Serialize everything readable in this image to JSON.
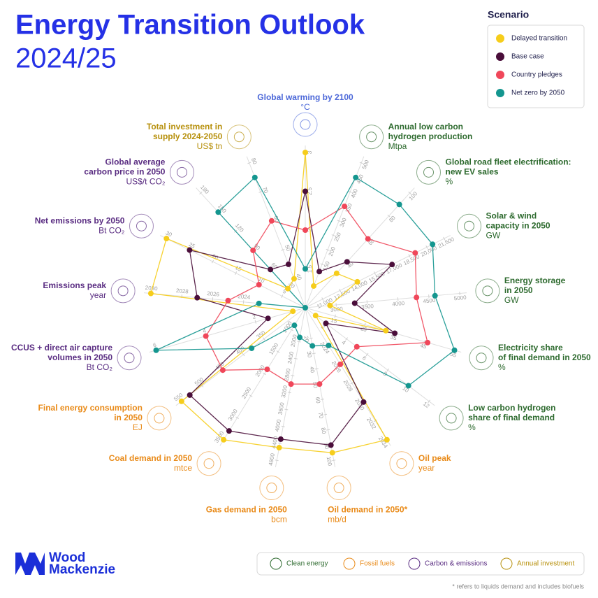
{
  "chart_data": {
    "type": "radar",
    "title": "Energy Transition Outlook",
    "subtitle": "2024/25",
    "legend_title": "Scenario",
    "series": [
      {
        "name": "Delayed transition",
        "color": "#f6cd1b",
        "values": [
          3,
          75,
          30,
          14000,
          2900,
          32,
          1,
          2034,
          95,
          4500,
          3500,
          550,
          0.5,
          2030,
          30,
          30,
          40
        ]
      },
      {
        "name": "Base case",
        "color": "#4a0e3a",
        "values": [
          2.5,
          125,
          40,
          17000,
          3300,
          35,
          2,
          2030,
          90,
          4300,
          3300,
          530,
          1.5,
          2027,
          25,
          60,
          45
        ]
      },
      {
        "name": "Country pledges",
        "color": "#f0475a",
        "values": [
          2,
          350,
          60,
          19000,
          4300,
          46,
          5,
          2026,
          50,
          3000,
          1900,
          450,
          4,
          2025,
          10,
          90,
          60
        ]
      },
      {
        "name": "Net zero by 2050",
        "color": "#14968f",
        "values": [
          1.5,
          450,
          90,
          20500,
          4600,
          55,
          10,
          2024,
          25,
          1900,
          900,
          380,
          6,
          2023,
          0,
          150,
          75
        ]
      }
    ],
    "axes": [
      {
        "label": [
          "Global warming by 2100"
        ],
        "unit": "°C",
        "color": "#4b67d8",
        "lim": [
          1,
          3
        ],
        "ticks": [
          1.5,
          2,
          2.5,
          3
        ]
      },
      {
        "label": [
          "Annual low carbon",
          "hydrogen production"
        ],
        "unit": "Mtpa",
        "color": "#2d6a2e",
        "lim": [
          0,
          500
        ],
        "ticks": [
          150,
          200,
          250,
          300,
          350,
          400,
          450,
          500
        ]
      },
      {
        "label": [
          "Global road fleet electrification:",
          "new EV sales"
        ],
        "unit": "%",
        "color": "#2d6a2e",
        "lim": [
          0,
          100
        ],
        "ticks": [
          40,
          60,
          80,
          100
        ]
      },
      {
        "label": [
          "Solar & wind",
          "capacity in 2050"
        ],
        "unit": "GW",
        "color": "#2d6a2e",
        "lim": [
          9500,
          21500
        ],
        "ticks": [
          {
            "value": 11000,
            "label": "11,000"
          },
          {
            "value": 12500,
            "label": "12,500"
          },
          {
            "value": 14000,
            "label": "14,000"
          },
          {
            "value": 15500,
            "label": "15,500"
          },
          {
            "value": 17000,
            "label": "17,000"
          },
          {
            "value": 18500,
            "label": "18,500"
          },
          {
            "value": 20000,
            "label": "20,000"
          },
          {
            "value": 21500,
            "label": "21,500"
          }
        ]
      },
      {
        "label": [
          "Energy storage",
          "in 2050"
        ],
        "unit": "GW",
        "color": "#2d6a2e",
        "lim": [
          2500,
          5000
        ],
        "ticks": [
          3000,
          3500,
          4000,
          4500,
          5000
        ]
      },
      {
        "label": [
          "Electricity share",
          "of final demand in 2050"
        ],
        "unit": "%",
        "color": "#2d6a2e",
        "lim": [
          5,
          55
        ],
        "ticks": [
          15,
          25,
          35,
          45,
          55
        ]
      },
      {
        "label": [
          "Low carbon hydrogen",
          "share of final demand"
        ],
        "unit": "%",
        "color": "#2d6a2e",
        "lim": [
          0,
          12
        ],
        "ticks": [
          2,
          4,
          6,
          8,
          10,
          12
        ]
      },
      {
        "label": [
          "Oil peak"
        ],
        "unit": "year",
        "color": "#e98b1a",
        "lim": [
          2020,
          2034
        ],
        "ticks": [
          2024,
          2026,
          2028,
          2030,
          2032,
          2034
        ]
      },
      {
        "label": [
          "Oil demand in 2050*"
        ],
        "unit": "mb/d",
        "color": "#e98b1a",
        "lim": [
          0,
          100
        ],
        "ticks": [
          20,
          30,
          40,
          50,
          60,
          70,
          80,
          90,
          100
        ]
      },
      {
        "label": [
          "Gas demand in 2050"
        ],
        "unit": "bcm",
        "color": "#e98b1a",
        "lim": [
          1200,
          4800
        ],
        "ticks": [
          2000,
          2400,
          2800,
          3200,
          3600,
          4000,
          4400,
          4800
        ]
      },
      {
        "label": [
          "Coal demand in 2050"
        ],
        "unit": "mtce",
        "color": "#e98b1a",
        "lim": [
          500,
          3500
        ],
        "ticks": [
          1000,
          1500,
          2000,
          2500,
          3000,
          3500
        ]
      },
      {
        "label": [
          "Final energy consumption",
          "in 2050"
        ],
        "unit": "EJ",
        "color": "#e98b1a",
        "lim": [
          250,
          550
        ],
        "ticks": [
          350,
          400,
          450,
          500,
          550
        ]
      },
      {
        "label": [
          "CCUS + direct air capture",
          "volumes in 2050"
        ],
        "unit": "Bt CO₂",
        "color": "#5a2d82",
        "lim": [
          0,
          6
        ],
        "ticks": [
          2,
          4,
          6
        ]
      },
      {
        "label": [
          "Emissions peak"
        ],
        "unit": "year",
        "color": "#5a2d82",
        "lim": [
          2020,
          2030
        ],
        "ticks": [
          2024,
          2026,
          2028,
          2030
        ]
      },
      {
        "label": [
          "Net emissions by 2050"
        ],
        "unit": "Bt CO₂",
        "color": "#5a2d82",
        "lim": [
          0,
          30
        ],
        "ticks": [
          5,
          10,
          15,
          20,
          25,
          30
        ]
      },
      {
        "label": [
          "Global average",
          "carbon price in 2050"
        ],
        "unit": "US$/t CO₂",
        "color": "#5a2d82",
        "lim": [
          0,
          180
        ],
        "ticks": [
          30,
          60,
          90,
          120,
          150,
          180
        ]
      },
      {
        "label": [
          "Total investment in",
          "supply 2024-2050"
        ],
        "unit": "US$ tn",
        "color": "#b7900c",
        "lim": [
          30,
          80
        ],
        "ticks": [
          40,
          50,
          60,
          70,
          80
        ]
      }
    ],
    "groups": [
      {
        "name": "Clean energy",
        "color": "#2d6a2e"
      },
      {
        "name": "Fossil fuels",
        "color": "#e98b1a"
      },
      {
        "name": "Carbon & emissions",
        "color": "#5a2d82"
      },
      {
        "name": "Annual investment",
        "color": "#b7900c"
      }
    ],
    "logo": [
      "Wood",
      "Mackenzie"
    ],
    "footnote": "* refers to liquids demand and includes biofuels"
  }
}
